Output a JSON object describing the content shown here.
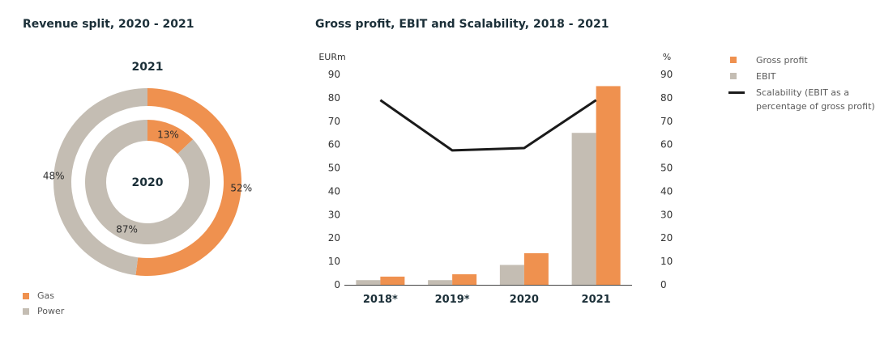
{
  "left_title": "Revenue split, 2020 - 2021",
  "right_title": "Gross profit, EBIT and Scalability, 2018 - 2021",
  "colors": {
    "gas": "#ef914f",
    "power": "#c4bdb3",
    "ebit": "#c4bdb3",
    "gross": "#ef914f",
    "line": "#1a1a1a",
    "text": "#1b2f38"
  },
  "chart_data": [
    {
      "type": "donut",
      "outer_label": "2021",
      "inner_label": "2020",
      "categories": [
        "Gas",
        "Power"
      ],
      "outer_values": [
        52,
        48
      ],
      "inner_values": [
        13,
        87
      ],
      "outer_value_labels": [
        "52%",
        "48%"
      ],
      "inner_value_labels": [
        "13%",
        "87%"
      ],
      "legend": [
        {
          "label": "Gas",
          "color_key": "gas"
        },
        {
          "label": "Power",
          "color_key": "power"
        }
      ]
    },
    {
      "type": "bar+line",
      "categories": [
        "2018*",
        "2019*",
        "2020",
        "2021"
      ],
      "series": [
        {
          "name": "EBIT",
          "type": "bar",
          "values": [
            2,
            2,
            8.5,
            65
          ]
        },
        {
          "name": "Gross profit",
          "type": "bar",
          "values": [
            3.5,
            4.5,
            13.5,
            85
          ]
        },
        {
          "name": "Scalability (EBIT as a percentage of gross profit)",
          "type": "line",
          "axis": "right",
          "values": [
            79,
            57.5,
            58.5,
            79
          ]
        }
      ],
      "y_left_label": "EURm",
      "y_right_label": "%",
      "ylim": [
        0,
        90
      ],
      "yticks": [
        0,
        10,
        20,
        30,
        40,
        50,
        60,
        70,
        80,
        90
      ],
      "legend": [
        {
          "label": "Gross profit",
          "kind": "square",
          "color_key": "gross"
        },
        {
          "label": "EBIT",
          "kind": "square",
          "color_key": "ebit"
        },
        {
          "label": "Scalability (EBIT as a percentage of gross profit)",
          "kind": "line",
          "color_key": "line"
        }
      ]
    }
  ]
}
